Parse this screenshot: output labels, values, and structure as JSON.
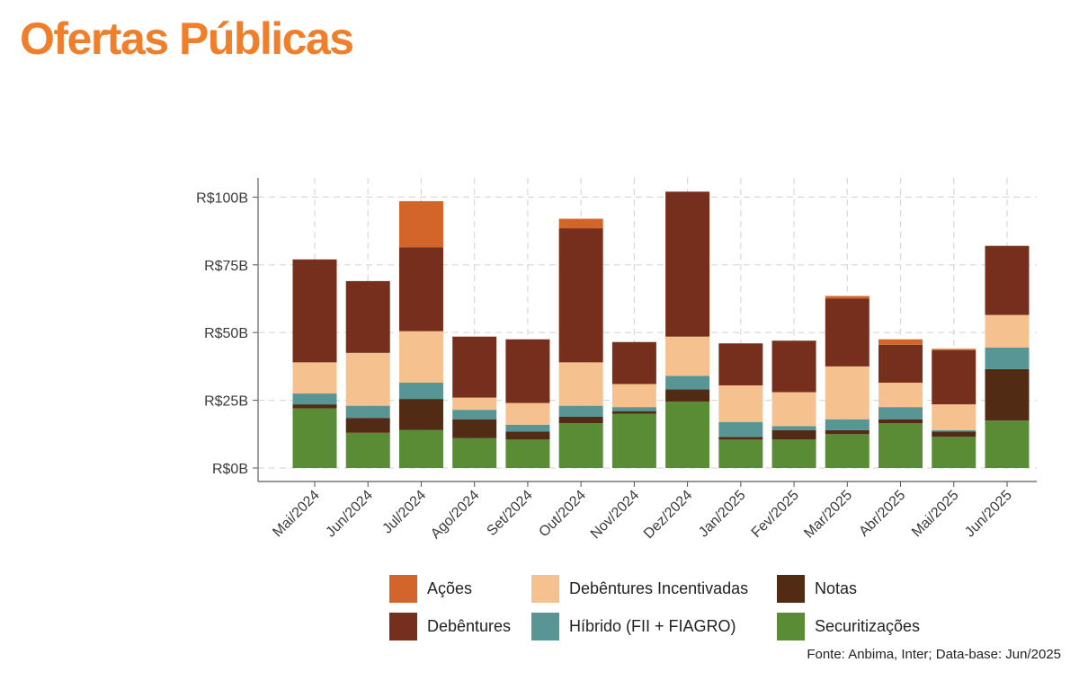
{
  "title": "Ofertas Públicas",
  "source": "Fonte: Anbima, Inter; Data-base: Jun/2025",
  "colors": {
    "title": "#ef7f2b",
    "Ações": "#d4652a",
    "Debêntures": "#772f1d",
    "Debêntures Incentivadas": "#f5c28f",
    "Híbrido (FII + FIAGRO)": "#579694",
    "Notas": "#522b15",
    "Securitizações": "#5a8b35"
  },
  "legend": [
    {
      "key": "acoes",
      "label": "Ações"
    },
    {
      "key": "debentures",
      "label": "Debêntures"
    },
    {
      "key": "deb_incentivadas",
      "label": "Debêntures Incentivadas"
    },
    {
      "key": "hibrido",
      "label": "Híbrido (FII + FIAGRO)"
    },
    {
      "key": "notas",
      "label": "Notas"
    },
    {
      "key": "securitizacoes",
      "label": "Securitizações"
    }
  ],
  "chart_data": {
    "type": "bar",
    "stacked": true,
    "title": "Ofertas Públicas",
    "xlabel": "",
    "ylabel": "",
    "ylim": [
      0,
      105
    ],
    "yticks": [
      0,
      25,
      50,
      75,
      100
    ],
    "ytick_labels": [
      "R$0B",
      "R$25B",
      "R$50B",
      "R$75B",
      "R$100B"
    ],
    "grid": true,
    "legend_position": "bottom",
    "categories": [
      "Mai/2024",
      "Jun/2024",
      "Jul/2024",
      "Ago/2024",
      "Set/2024",
      "Out/2024",
      "Nov/2024",
      "Dez/2024",
      "Jan/2025",
      "Fev/2025",
      "Mar/2025",
      "Abr/2025",
      "Mai/2025",
      "Jun/2025"
    ],
    "series": [
      {
        "name": "Securitizações",
        "values": [
          22,
          13,
          14,
          11,
          10.5,
          16.5,
          20,
          24.5,
          10.5,
          10.5,
          12.5,
          16.5,
          11.5,
          17.5
        ]
      },
      {
        "name": "Notas",
        "values": [
          1.5,
          5.5,
          11.5,
          7,
          3,
          2.5,
          1,
          4.5,
          1,
          3.5,
          1.5,
          1.5,
          2,
          19
        ]
      },
      {
        "name": "Híbrido (FII + FIAGRO)",
        "values": [
          4,
          4.5,
          6,
          3.5,
          2.5,
          4,
          1.5,
          5,
          5.5,
          1.5,
          4,
          4.5,
          0.5,
          8
        ]
      },
      {
        "name": "Debêntures Incentivadas",
        "values": [
          11.5,
          19.5,
          19,
          4.5,
          8,
          16,
          8.5,
          14.5,
          13.5,
          12.5,
          19.5,
          9,
          9.5,
          12
        ]
      },
      {
        "name": "Debêntures",
        "values": [
          38,
          26.5,
          31,
          22.5,
          23.5,
          49.5,
          15.5,
          53.5,
          15.5,
          19,
          25,
          14,
          20,
          25.5
        ]
      },
      {
        "name": "Ações",
        "values": [
          0,
          0,
          17,
          0,
          0,
          3.5,
          0,
          0,
          0,
          0,
          1,
          2,
          0.5,
          0
        ]
      }
    ]
  }
}
